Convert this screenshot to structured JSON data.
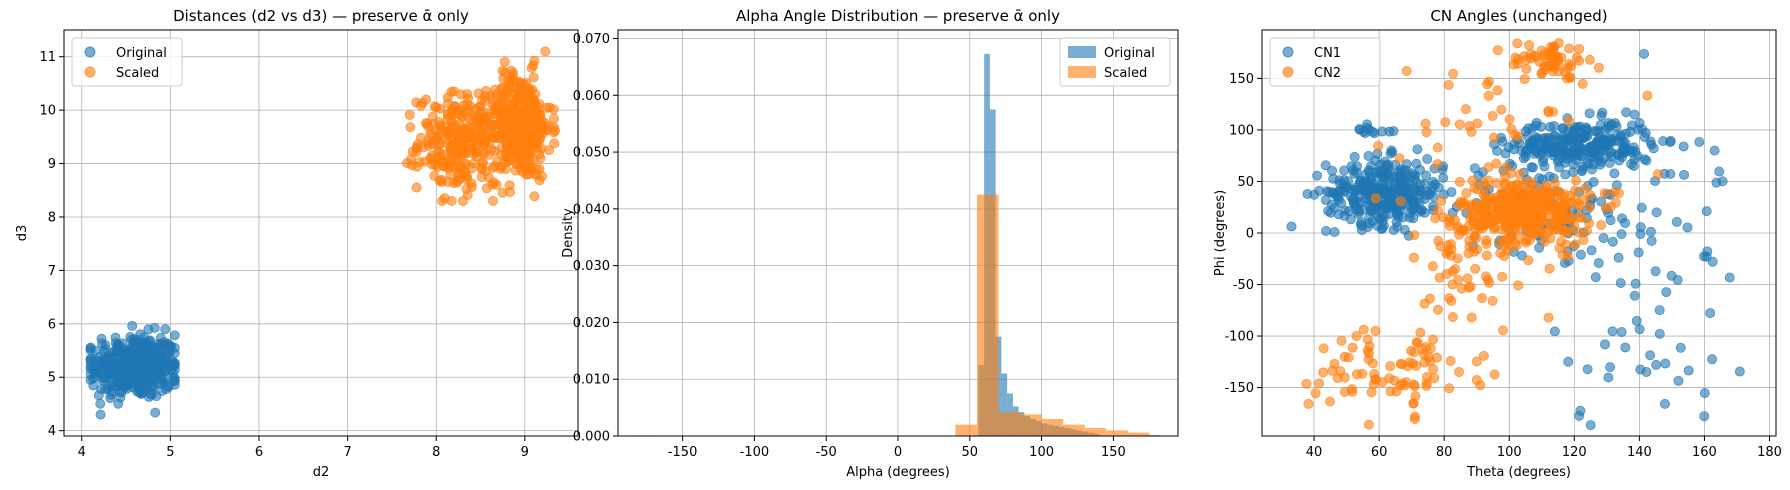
{
  "colors": {
    "blue": "#1f77b4",
    "orange": "#ff7f0e",
    "grid": "#b0b0b0"
  },
  "chart_data": [
    {
      "type": "scatter",
      "title": "Distances (d2 vs d3)  —  preserve ᾱ only",
      "xlabel": "d2",
      "ylabel": "d3",
      "xlim": [
        3.8,
        9.6
      ],
      "ylim": [
        3.9,
        11.5
      ],
      "xticks": [
        4,
        5,
        6,
        7,
        8,
        9
      ],
      "yticks": [
        4,
        5,
        6,
        7,
        8,
        9,
        10,
        11
      ],
      "grid": true,
      "legend": "top-left",
      "series": [
        {
          "name": "Original",
          "color": "#1f77b4",
          "clusters": [
            {
              "cx": 4.6,
              "cy": 5.2,
              "sx": 0.25,
              "sy": 0.3,
              "n": 420,
              "xmin": 4.1,
              "xmax": 5.05,
              "ymin": 4.3,
              "ymax": 6.05
            }
          ]
        },
        {
          "name": "Scaled",
          "color": "#ff7f0e",
          "clusters": [
            {
              "cx": 8.3,
              "cy": 9.4,
              "sx": 0.25,
              "sy": 0.45,
              "n": 280,
              "xmin": 7.5,
              "xmax": 8.8,
              "ymin": 8.3,
              "ymax": 11.0
            },
            {
              "cx": 8.95,
              "cy": 9.7,
              "sx": 0.17,
              "sy": 0.5,
              "n": 360,
              "xmin": 8.5,
              "xmax": 9.4,
              "ymin": 7.9,
              "ymax": 11.1
            }
          ]
        }
      ]
    },
    {
      "type": "bar",
      "subtype": "histogram",
      "title": "Alpha Angle Distribution  —  preserve ᾱ only",
      "xlabel": "Alpha (degrees)",
      "ylabel": "Density",
      "xlim": [
        -195,
        195
      ],
      "ylim": [
        0,
        0.0715
      ],
      "xticks": [
        -150,
        -100,
        -50,
        0,
        50,
        100,
        150
      ],
      "yticks": [
        0.0,
        0.01,
        0.02,
        0.03,
        0.04,
        0.05,
        0.06,
        0.07
      ],
      "ytick_labels": [
        "0.000",
        "0.010",
        "0.020",
        "0.030",
        "0.040",
        "0.050",
        "0.060",
        "0.070"
      ],
      "grid": true,
      "legend": "top-right",
      "series": [
        {
          "name": "Original",
          "color": "#1f77b4",
          "bin_edges": [
            56,
            60,
            64,
            68,
            72,
            76,
            80,
            84,
            88,
            92,
            96,
            100,
            104,
            108,
            112,
            116,
            120,
            124,
            128,
            132,
            136,
            140
          ],
          "values": [
            0.0125,
            0.0673,
            0.0575,
            0.0175,
            0.011,
            0.0075,
            0.0052,
            0.0042,
            0.0035,
            0.003,
            0.0026,
            0.0022,
            0.002,
            0.0018,
            0.0016,
            0.0014,
            0.0012,
            0.001,
            0.0008,
            0.0006,
            0.0004
          ]
        },
        {
          "name": "Scaled",
          "color": "#ff7f0e",
          "bin_edges": [
            -185,
            -170,
            -155,
            40,
            55,
            70,
            85,
            100,
            115,
            130,
            145,
            160,
            175,
            182
          ],
          "values": [
            0.0001,
            5e-05,
            0.0,
            0.002,
            0.0425,
            0.0042,
            0.0038,
            0.003,
            0.002,
            0.0014,
            0.001,
            0.0006,
            0.0002
          ]
        }
      ]
    },
    {
      "type": "scatter",
      "title": "CN Angles (unchanged)",
      "xlabel": "Theta (degrees)",
      "ylabel": "Phi (degrees)",
      "xlim": [
        24,
        182
      ],
      "ylim": [
        -197,
        197
      ],
      "xticks": [
        40,
        60,
        80,
        100,
        120,
        140,
        160,
        180
      ],
      "yticks": [
        -150,
        -100,
        -50,
        0,
        50,
        100,
        150
      ],
      "grid": true,
      "legend": "top-left",
      "series": [
        {
          "name": "CN1",
          "color": "#1f77b4",
          "clusters": [
            {
              "cx": 62,
              "cy": 40,
              "sx": 9,
              "sy": 16,
              "n": 320
            },
            {
              "cx": 122,
              "cy": 85,
              "sx": 11,
              "sy": 12,
              "n": 260
            },
            {
              "cx": 110,
              "cy": 25,
              "sx": 12,
              "sy": 22,
              "n": 110
            },
            {
              "cx": 140,
              "cy": 30,
              "sx": 16,
              "sy": 50,
              "n": 45
            },
            {
              "cx": 140,
              "cy": -110,
              "sx": 14,
              "sy": 40,
              "n": 35
            },
            {
              "cx": 58,
              "cy": 100,
              "sx": 4,
              "sy": 4,
              "n": 12
            }
          ]
        },
        {
          "name": "CN2",
          "color": "#ff7f0e",
          "clusters": [
            {
              "cx": 105,
              "cy": 20,
              "sx": 10,
              "sy": 16,
              "n": 360
            },
            {
              "cx": 112,
              "cy": 168,
              "sx": 6,
              "sy": 9,
              "n": 60
            },
            {
              "cx": 65,
              "cy": -130,
              "sx": 13,
              "sy": 22,
              "n": 90
            },
            {
              "cx": 85,
              "cy": -30,
              "sx": 12,
              "sy": 40,
              "n": 60
            },
            {
              "cx": 100,
              "cy": 110,
              "sx": 18,
              "sy": 40,
              "n": 45
            }
          ]
        }
      ]
    }
  ]
}
